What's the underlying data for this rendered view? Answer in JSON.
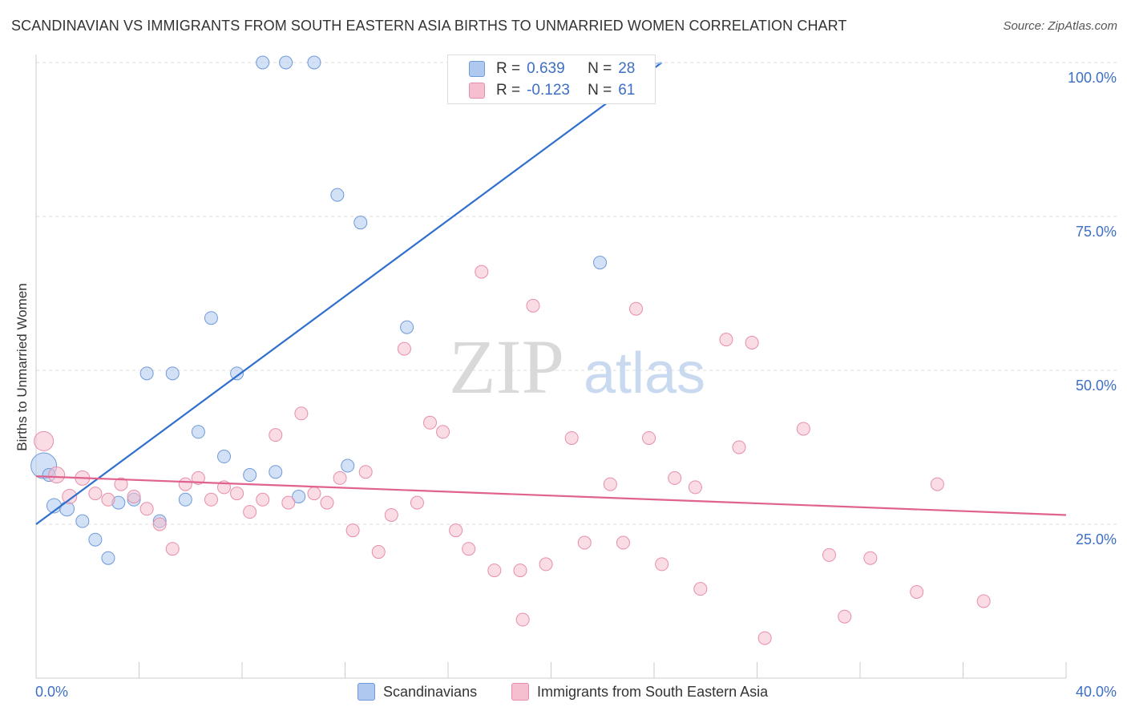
{
  "title": "SCANDINAVIAN VS IMMIGRANTS FROM SOUTH EASTERN ASIA BIRTHS TO UNMARRIED WOMEN CORRELATION CHART",
  "source": "Source: ZipAtlas.com",
  "watermark": {
    "zip": "ZIP",
    "atlas": "atlas"
  },
  "colors": {
    "blue_fill": "#aec8ef",
    "blue_stroke": "#6f9ad8",
    "blue_line": "#2f6fcf",
    "pink_fill": "#f6bfd0",
    "pink_stroke": "#e68eab",
    "pink_line": "#e0628f",
    "tick_label": "#3d6fc4",
    "grid": "#dddddd"
  },
  "stats": {
    "rows": [
      {
        "r_label": "R =",
        "r_value": "0.639",
        "n_label": "N =",
        "n_value": "28"
      },
      {
        "r_label": "R =",
        "r_value": "-0.123",
        "n_label": "N =",
        "n_value": "61"
      }
    ]
  },
  "legend": {
    "items": [
      "Scandinavians",
      "Immigrants from South Eastern Asia"
    ]
  },
  "chart_data": {
    "type": "scatter",
    "ylabel": "Births to Unmarried Women",
    "xlabel": "",
    "xlim": [
      0,
      40
    ],
    "ylim": [
      0,
      103
    ],
    "x_tick_labels": [
      "0.0%",
      "40.0%"
    ],
    "y_ticks": [
      25,
      50,
      75,
      100
    ],
    "y_tick_labels": [
      "25.0%",
      "50.0%",
      "75.0%",
      "100.0%"
    ],
    "grid": true,
    "series": [
      {
        "name": "Scandinavians",
        "points": [
          [
            0.3,
            34.5
          ],
          [
            0.7,
            28.0
          ],
          [
            1.2,
            27.5
          ],
          [
            1.8,
            25.5
          ],
          [
            2.3,
            22.5
          ],
          [
            2.8,
            19.5
          ],
          [
            3.2,
            28.5
          ],
          [
            3.8,
            29.0
          ],
          [
            4.3,
            49.5
          ],
          [
            4.8,
            25.5
          ],
          [
            5.3,
            49.5
          ],
          [
            5.8,
            29.0
          ],
          [
            6.3,
            40.0
          ],
          [
            6.8,
            58.5
          ],
          [
            7.3,
            36.0
          ],
          [
            7.8,
            49.5
          ],
          [
            8.3,
            33.0
          ],
          [
            8.8,
            100
          ],
          [
            9.3,
            33.5
          ],
          [
            9.7,
            100
          ],
          [
            10.2,
            29.5
          ],
          [
            10.8,
            100
          ],
          [
            11.7,
            78.5
          ],
          [
            12.1,
            34.5
          ],
          [
            12.6,
            74.0
          ],
          [
            14.4,
            57.0
          ],
          [
            21.9,
            67.5
          ],
          [
            0.5,
            33.0
          ]
        ],
        "sizes": [
          32,
          18,
          18,
          16,
          16,
          16,
          16,
          16,
          16,
          16,
          16,
          16,
          16,
          16,
          16,
          16,
          16,
          16,
          16,
          16,
          16,
          16,
          16,
          16,
          16,
          16,
          16,
          16
        ],
        "trend": {
          "x": [
            0,
            24.3
          ],
          "y": [
            25.0,
            100.0
          ]
        }
      },
      {
        "name": "Immigrants from South Eastern Asia",
        "points": [
          [
            0.3,
            38.5
          ],
          [
            0.8,
            33.0
          ],
          [
            1.3,
            29.5
          ],
          [
            1.8,
            32.5
          ],
          [
            2.3,
            30.0
          ],
          [
            2.8,
            29.0
          ],
          [
            3.3,
            31.5
          ],
          [
            3.8,
            29.5
          ],
          [
            4.3,
            27.5
          ],
          [
            4.8,
            25.0
          ],
          [
            5.3,
            21.0
          ],
          [
            5.8,
            31.5
          ],
          [
            6.3,
            32.5
          ],
          [
            6.8,
            29.0
          ],
          [
            7.3,
            31.0
          ],
          [
            7.8,
            30.0
          ],
          [
            8.3,
            27.0
          ],
          [
            8.8,
            29.0
          ],
          [
            9.3,
            39.5
          ],
          [
            9.8,
            28.5
          ],
          [
            10.3,
            43.0
          ],
          [
            10.8,
            30.0
          ],
          [
            11.3,
            28.5
          ],
          [
            11.8,
            32.5
          ],
          [
            12.3,
            24.0
          ],
          [
            12.8,
            33.5
          ],
          [
            13.3,
            20.5
          ],
          [
            13.8,
            26.5
          ],
          [
            14.3,
            53.5
          ],
          [
            14.8,
            28.5
          ],
          [
            15.3,
            41.5
          ],
          [
            15.8,
            40.0
          ],
          [
            16.3,
            24.0
          ],
          [
            16.8,
            21.0
          ],
          [
            17.3,
            66.0
          ],
          [
            17.8,
            17.5
          ],
          [
            18.8,
            17.5
          ],
          [
            18.9,
            9.5
          ],
          [
            19.3,
            60.5
          ],
          [
            19.8,
            18.5
          ],
          [
            20.8,
            39.0
          ],
          [
            21.3,
            22.0
          ],
          [
            22.3,
            31.5
          ],
          [
            22.8,
            22.0
          ],
          [
            23.3,
            60.0
          ],
          [
            23.8,
            39.0
          ],
          [
            24.3,
            18.5
          ],
          [
            24.8,
            32.5
          ],
          [
            25.6,
            31.0
          ],
          [
            25.8,
            14.5
          ],
          [
            26.8,
            55.0
          ],
          [
            27.3,
            37.5
          ],
          [
            27.8,
            54.5
          ],
          [
            28.3,
            6.5
          ],
          [
            29.8,
            40.5
          ],
          [
            30.8,
            20.0
          ],
          [
            31.4,
            10.0
          ],
          [
            32.4,
            19.5
          ],
          [
            34.2,
            14.0
          ],
          [
            35.0,
            31.5
          ],
          [
            36.8,
            12.5
          ]
        ],
        "sizes": [
          24,
          20,
          18,
          18,
          16,
          16,
          16,
          16,
          16,
          16,
          16,
          16,
          16,
          16,
          16,
          16,
          16,
          16,
          16,
          16,
          16,
          16,
          16,
          16,
          16,
          16,
          16,
          16,
          16,
          16,
          16,
          16,
          16,
          16,
          16,
          16,
          16,
          16,
          16,
          16,
          16,
          16,
          16,
          16,
          16,
          16,
          16,
          16,
          16,
          16,
          16,
          16,
          16,
          16,
          16,
          16,
          16,
          16,
          16,
          16,
          16
        ],
        "trend": {
          "x": [
            0,
            40
          ],
          "y": [
            32.8,
            26.5
          ]
        }
      }
    ]
  }
}
